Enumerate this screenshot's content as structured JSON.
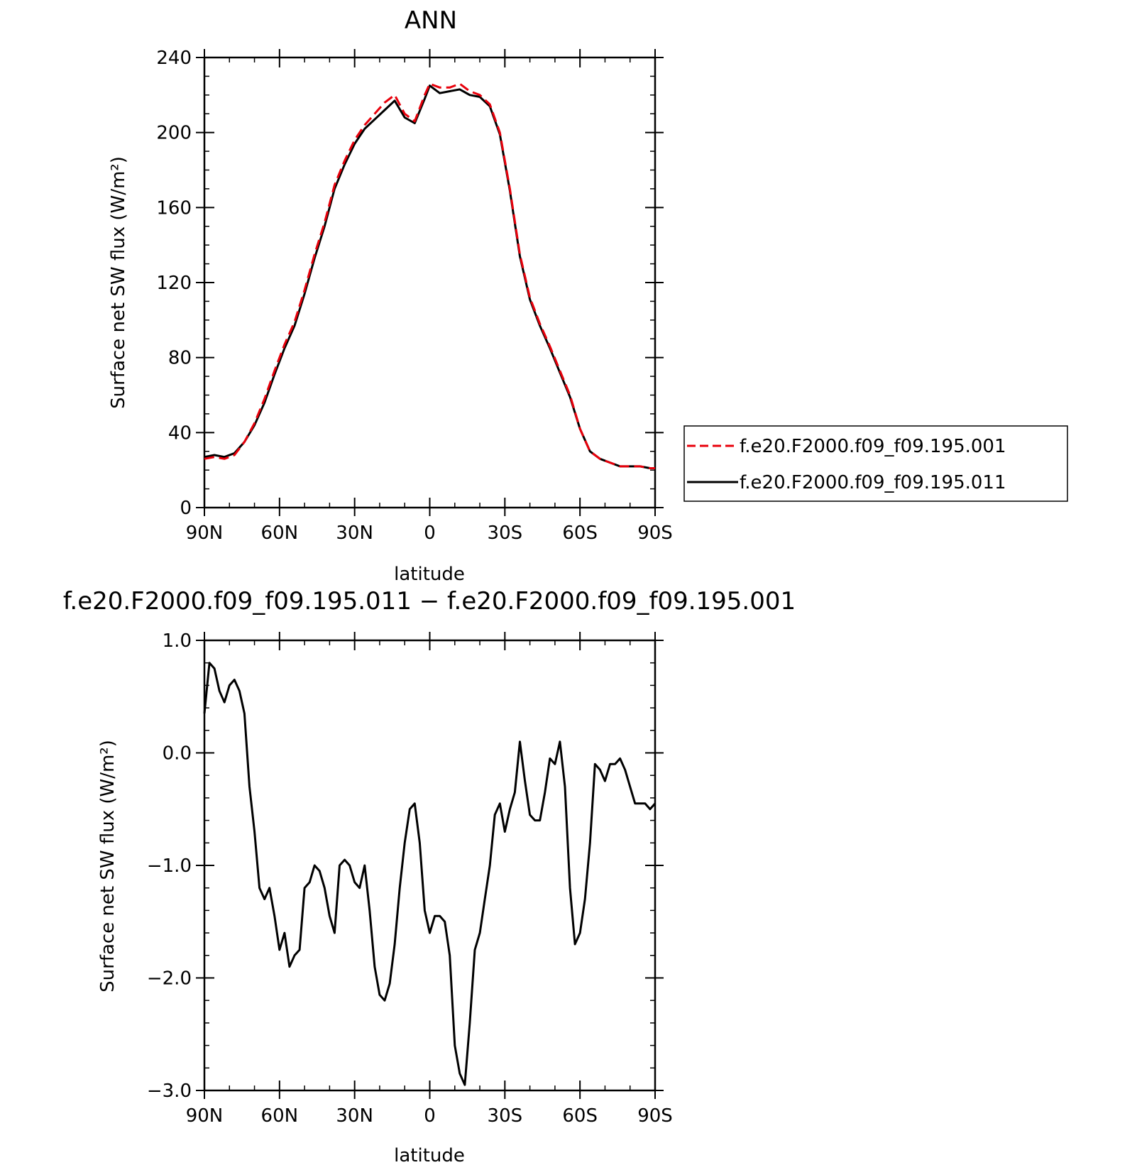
{
  "chart_data": [
    {
      "type": "line",
      "title": "ANN",
      "xlabel": "latitude",
      "ylabel": "Surface net SW flux (W/m²)",
      "x_ticks": [
        "90N",
        "60N",
        "30N",
        "0",
        "30S",
        "60S",
        "90S"
      ],
      "y_ticks": [
        "0",
        "40",
        "80",
        "120",
        "160",
        "200",
        "240"
      ],
      "xlim": [
        90,
        -90
      ],
      "ylim": [
        0,
        240
      ],
      "legend_position": "right",
      "series": [
        {
          "name": "f.e20.F2000.f09_f09.195.001",
          "color": "#e8000b",
          "style": "dashed",
          "x": [
            90,
            86,
            82,
            78,
            74,
            70,
            66,
            62,
            58,
            54,
            50,
            46,
            42,
            38,
            34,
            30,
            26,
            22,
            18,
            14,
            10,
            6,
            2,
            0,
            -4,
            -8,
            -12,
            -16,
            -20,
            -24,
            -28,
            -32,
            -36,
            -40,
            -44,
            -48,
            -52,
            -56,
            -60,
            -64,
            -68,
            -72,
            -76,
            -80,
            -84,
            -88,
            -90
          ],
          "y": [
            26,
            27,
            26,
            28,
            35,
            45,
            58,
            73,
            87,
            99,
            116,
            135,
            152,
            172,
            185,
            196,
            204,
            210,
            216,
            220,
            210,
            206,
            220,
            226,
            224,
            224,
            226,
            222,
            220,
            215,
            200,
            170,
            135,
            112,
            98,
            86,
            73,
            60,
            42,
            30,
            26,
            24,
            22,
            22,
            22,
            21,
            21
          ]
        },
        {
          "name": "f.e20.F2000.f09_f09.195.011",
          "color": "#000000",
          "style": "solid",
          "x": [
            90,
            86,
            82,
            78,
            74,
            70,
            66,
            62,
            58,
            54,
            50,
            46,
            42,
            38,
            34,
            30,
            26,
            22,
            18,
            14,
            10,
            6,
            2,
            0,
            -4,
            -8,
            -12,
            -16,
            -20,
            -24,
            -28,
            -32,
            -36,
            -40,
            -44,
            -48,
            -52,
            -56,
            -60,
            -64,
            -68,
            -72,
            -76,
            -80,
            -84,
            -88,
            -90
          ],
          "y": [
            27,
            28,
            27,
            29,
            35,
            44,
            56,
            71,
            85,
            97,
            114,
            133,
            150,
            170,
            183,
            194,
            202,
            207,
            212,
            217,
            208,
            205,
            218,
            225,
            221,
            222,
            223,
            220,
            219,
            214,
            199,
            169,
            134,
            111,
            97,
            85,
            72,
            59,
            42,
            30,
            26,
            24,
            22,
            22,
            22,
            21,
            21
          ]
        }
      ]
    },
    {
      "type": "line",
      "title": "f.e20.F2000.f09_f09.195.011 − f.e20.F2000.f09_f09.195.001",
      "xlabel": "latitude",
      "ylabel": "Surface net SW flux (W/m²)",
      "x_ticks": [
        "90N",
        "60N",
        "30N",
        "0",
        "30S",
        "60S",
        "90S"
      ],
      "y_ticks": [
        "−3.0",
        "−2.0",
        "−1.0",
        "0.0",
        "1.0"
      ],
      "xlim": [
        90,
        -90
      ],
      "ylim": [
        -3.0,
        1.0
      ],
      "series": [
        {
          "color": "#000000",
          "style": "solid",
          "x": [
            90,
            88,
            86,
            84,
            82,
            80,
            78,
            76,
            74,
            72,
            70,
            68,
            66,
            64,
            62,
            60,
            58,
            56,
            54,
            52,
            50,
            48,
            46,
            44,
            42,
            40,
            38,
            36,
            34,
            32,
            30,
            28,
            26,
            24,
            22,
            20,
            18,
            16,
            14,
            12,
            10,
            8,
            6,
            4,
            2,
            0,
            -2,
            -4,
            -6,
            -8,
            -10,
            -12,
            -14,
            -16,
            -18,
            -20,
            -22,
            -24,
            -26,
            -28,
            -30,
            -32,
            -34,
            -36,
            -38,
            -40,
            -42,
            -44,
            -46,
            -48,
            -50,
            -52,
            -54,
            -56,
            -58,
            -60,
            -62,
            -64,
            -66,
            -68,
            -70,
            -72,
            -74,
            -76,
            -78,
            -80,
            -82,
            -84,
            -86,
            -88,
            -90
          ],
          "y": [
            0.35,
            0.8,
            0.75,
            0.55,
            0.45,
            0.6,
            0.65,
            0.55,
            0.35,
            -0.3,
            -0.7,
            -1.2,
            -1.3,
            -1.2,
            -1.45,
            -1.75,
            -1.6,
            -1.9,
            -1.8,
            -1.75,
            -1.2,
            -1.15,
            -1.0,
            -1.05,
            -1.2,
            -1.45,
            -1.6,
            -1.0,
            -0.95,
            -1.0,
            -1.15,
            -1.2,
            -1.0,
            -1.4,
            -1.9,
            -2.15,
            -2.2,
            -2.05,
            -1.7,
            -1.2,
            -0.8,
            -0.5,
            -0.45,
            -0.8,
            -1.4,
            -1.6,
            -1.45,
            -1.45,
            -1.5,
            -1.8,
            -2.6,
            -2.85,
            -2.95,
            -2.4,
            -1.75,
            -1.6,
            -1.3,
            -1.0,
            -0.55,
            -0.45,
            -0.7,
            -0.5,
            -0.35,
            0.1,
            -0.25,
            -0.55,
            -0.6,
            -0.6,
            -0.35,
            -0.05,
            -0.1,
            0.1,
            -0.3,
            -1.2,
            -1.7,
            -1.6,
            -1.3,
            -0.8,
            -0.1,
            -0.15,
            -0.25,
            -0.1,
            -0.1,
            -0.05,
            -0.15,
            -0.3,
            -0.45,
            -0.45,
            -0.45,
            -0.5,
            -0.45
          ]
        }
      ]
    }
  ]
}
